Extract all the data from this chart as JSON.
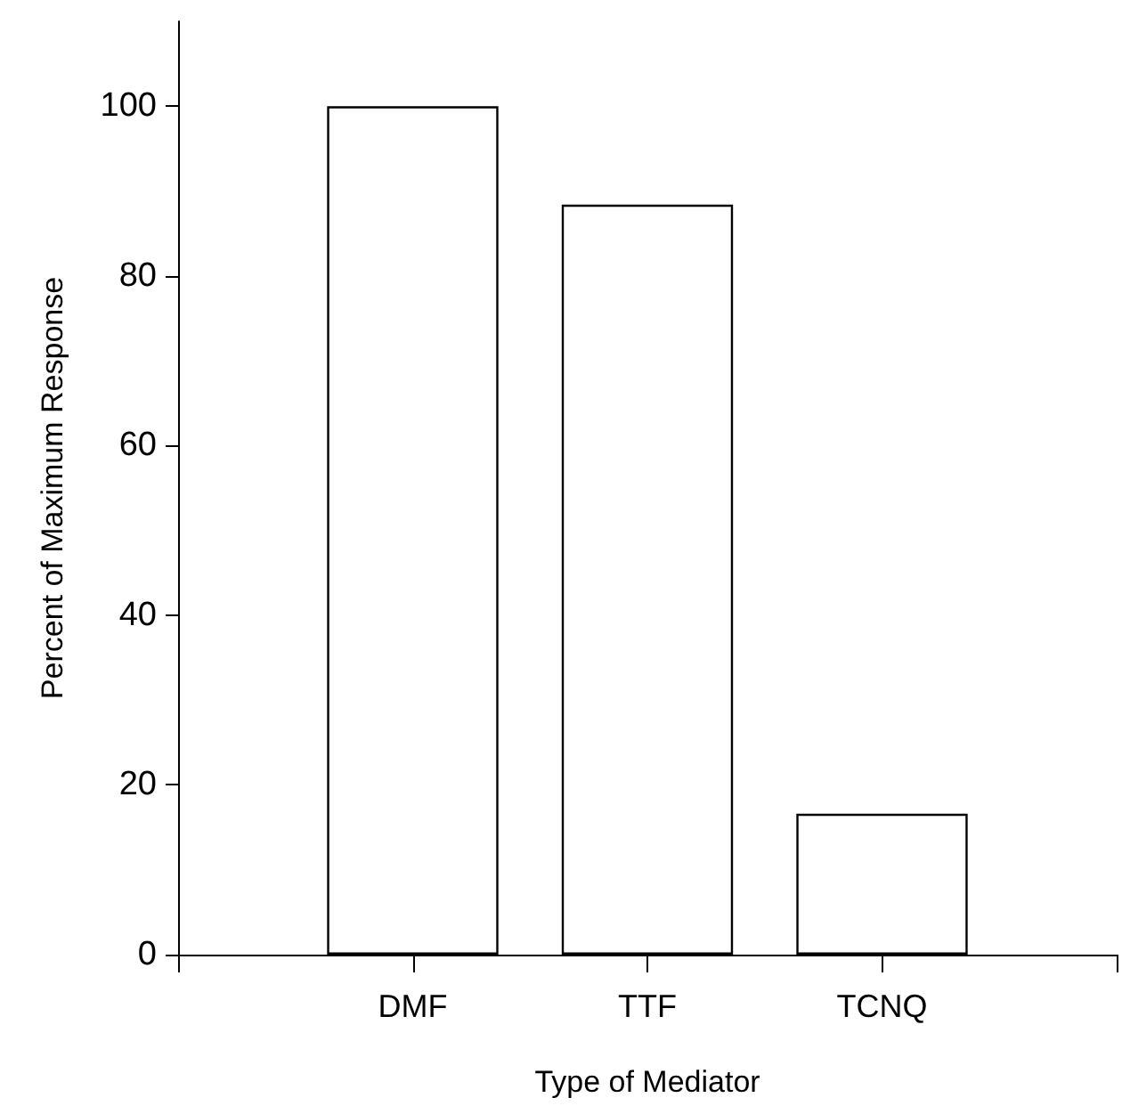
{
  "chart_data": {
    "type": "bar",
    "xlabel": "Type of Mediator",
    "ylabel": "Percent of Maximum Response",
    "categories": [
      "DMF",
      "TTF",
      "TCNQ"
    ],
    "values": [
      100,
      88.4,
      16.6
    ],
    "color": "#ffffff",
    "ylim": [
      0,
      110
    ],
    "yticks": [
      0,
      20,
      40,
      60,
      80,
      100
    ],
    "grid": false
  }
}
